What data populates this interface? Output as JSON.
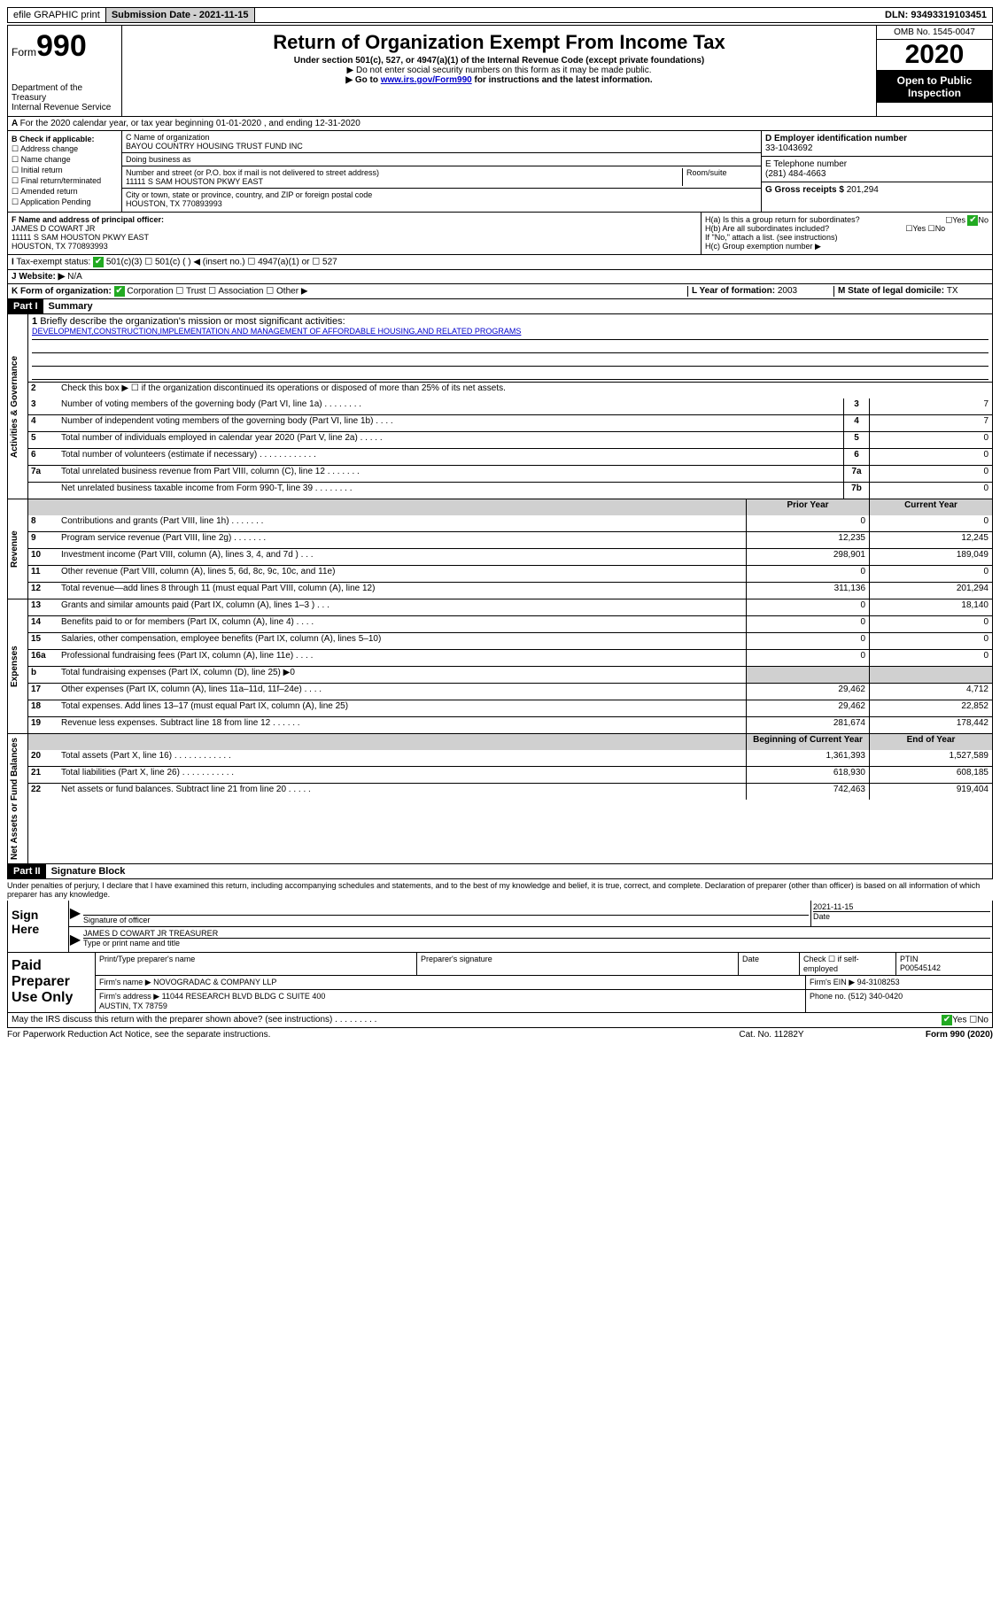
{
  "topbar": {
    "efile": "efile GRAPHIC print",
    "submission_label": "Submission Date - ",
    "submission_date": "2021-11-15",
    "dln_label": "DLN: ",
    "dln": "93493319103451"
  },
  "header": {
    "form_prefix": "Form",
    "form_number": "990",
    "dept": "Department of the Treasury\nInternal Revenue Service",
    "title": "Return of Organization Exempt From Income Tax",
    "subtitle": "Under section 501(c), 527, or 4947(a)(1) of the Internal Revenue Code (except private foundations)",
    "note1": "▶ Do not enter social security numbers on this form as it may be made public.",
    "note2_pre": "▶ Go to ",
    "note2_link": "www.irs.gov/Form990",
    "note2_post": " for instructions and the latest information.",
    "omb": "OMB No. 1545-0047",
    "year": "2020",
    "inspection": "Open to Public Inspection"
  },
  "periodA": "For the 2020 calendar year, or tax year beginning 01-01-2020    , and ending 12-31-2020",
  "boxB": {
    "label": "B Check if applicable:",
    "items": [
      "Address change",
      "Name change",
      "Initial return",
      "Final return/terminated",
      "Amended return",
      "Application Pending"
    ]
  },
  "boxC": {
    "name_label": "C Name of organization",
    "name": "BAYOU COUNTRY HOUSING TRUST FUND INC",
    "dba_label": "Doing business as",
    "street_label": "Number and street (or P.O. box if mail is not delivered to street address)",
    "room_label": "Room/suite",
    "street": "11111 S SAM HOUSTON PKWY EAST",
    "city_label": "City or town, state or province, country, and ZIP or foreign postal code",
    "city": "HOUSTON, TX  770893993"
  },
  "boxD": {
    "label": "D Employer identification number",
    "value": "33-1043692"
  },
  "boxE": {
    "label": "E Telephone number",
    "value": "(281) 484-4663"
  },
  "boxG": {
    "label": "G Gross receipts $ ",
    "value": "201,294"
  },
  "boxF": {
    "label": "F  Name and address of principal officer:",
    "name": "JAMES D COWART JR",
    "addr1": "11111 S SAM HOUSTON PKWY EAST",
    "addr2": "HOUSTON, TX  770893993"
  },
  "boxH": {
    "a": "H(a)  Is this a group return for subordinates?",
    "b": "H(b)  Are all subordinates included?",
    "note": "If \"No,\" attach a list. (see instructions)",
    "c": "H(c)  Group exemption number ▶",
    "yes": "Yes",
    "no": "No"
  },
  "taxExempt": {
    "label": "Tax-exempt status:",
    "opt1": "501(c)(3)",
    "opt2": "501(c) (   ) ◀ (insert no.)",
    "opt3": "4947(a)(1) or",
    "opt4": "527"
  },
  "lineJ": {
    "label": "Website: ▶",
    "value": "N/A"
  },
  "lineK": {
    "label": "K Form of organization:",
    "opts": [
      "Corporation",
      "Trust",
      "Association",
      "Other ▶"
    ],
    "L": "L Year of formation: ",
    "Lval": "2003",
    "M": "M State of legal domicile: ",
    "Mval": "TX"
  },
  "partI": {
    "tag": "Part I",
    "title": "Summary",
    "q1": "Briefly describe the organization's mission or most significant activities:",
    "mission": "DEVELOPMENT,CONSTRUCTION,IMPLEMENTATION AND MANAGEMENT OF AFFORDABLE HOUSING,AND RELATED PROGRAMS",
    "q2": "Check this box ▶ ☐  if the organization discontinued its operations or disposed of more than 25% of its net assets.",
    "sections": {
      "gov": "Activities & Governance",
      "rev": "Revenue",
      "exp": "Expenses",
      "net": "Net Assets or Fund Balances"
    },
    "heads": {
      "prior": "Prior Year",
      "current": "Current Year",
      "boy": "Beginning of Current Year",
      "eoy": "End of Year"
    },
    "rows_gov": [
      {
        "n": "3",
        "d": "Number of voting members of the governing body (Part VI, line 1a)   .    .    .    .    .    .    .    .",
        "c": "3",
        "v": "7"
      },
      {
        "n": "4",
        "d": "Number of independent voting members of the governing body (Part VI, line 1b)   .    .    .    .",
        "c": "4",
        "v": "7"
      },
      {
        "n": "5",
        "d": "Total number of individuals employed in calendar year 2020 (Part V, line 2a)   .    .    .    .    .",
        "c": "5",
        "v": "0"
      },
      {
        "n": "6",
        "d": "Total number of volunteers (estimate if necessary)   .    .    .    .    .    .    .    .    .    .    .    .",
        "c": "6",
        "v": "0"
      },
      {
        "n": "7a",
        "d": "Total unrelated business revenue from Part VIII, column (C), line 12   .    .    .    .    .    .    .",
        "c": "7a",
        "v": "0"
      },
      {
        "n": "",
        "d": "Net unrelated business taxable income from Form 990-T, line 39   .    .    .    .    .    .    .    .",
        "c": "7b",
        "v": "0"
      }
    ],
    "rows_rev": [
      {
        "n": "8",
        "d": "Contributions and grants (Part VIII, line 1h)   .    .    .    .    .    .    .",
        "p": "0",
        "c": "0"
      },
      {
        "n": "9",
        "d": "Program service revenue (Part VIII, line 2g)   .    .    .    .    .    .    .",
        "p": "12,235",
        "c": "12,245"
      },
      {
        "n": "10",
        "d": "Investment income (Part VIII, column (A), lines 3, 4, and 7d )   .    .    .",
        "p": "298,901",
        "c": "189,049"
      },
      {
        "n": "11",
        "d": "Other revenue (Part VIII, column (A), lines 5, 6d, 8c, 9c, 10c, and 11e)",
        "p": "0",
        "c": "0"
      },
      {
        "n": "12",
        "d": "Total revenue—add lines 8 through 11 (must equal Part VIII, column (A), line 12)",
        "p": "311,136",
        "c": "201,294"
      }
    ],
    "rows_exp": [
      {
        "n": "13",
        "d": "Grants and similar amounts paid (Part IX, column (A), lines 1–3 )   .    .    .",
        "p": "0",
        "c": "18,140"
      },
      {
        "n": "14",
        "d": "Benefits paid to or for members (Part IX, column (A), line 4)   .    .    .    .",
        "p": "0",
        "c": "0"
      },
      {
        "n": "15",
        "d": "Salaries, other compensation, employee benefits (Part IX, column (A), lines 5–10)",
        "p": "0",
        "c": "0"
      },
      {
        "n": "16a",
        "d": "Professional fundraising fees (Part IX, column (A), line 11e)   .    .    .    .",
        "p": "0",
        "c": "0"
      },
      {
        "n": "b",
        "d": "Total fundraising expenses (Part IX, column (D), line 25) ▶0",
        "p": "",
        "c": "",
        "grey": true
      },
      {
        "n": "17",
        "d": "Other expenses (Part IX, column (A), lines 11a–11d, 11f–24e)   .    .    .    .",
        "p": "29,462",
        "c": "4,712"
      },
      {
        "n": "18",
        "d": "Total expenses. Add lines 13–17 (must equal Part IX, column (A), line 25)",
        "p": "29,462",
        "c": "22,852"
      },
      {
        "n": "19",
        "d": "Revenue less expenses. Subtract line 18 from line 12   .    .    .    .    .    .",
        "p": "281,674",
        "c": "178,442"
      }
    ],
    "rows_net": [
      {
        "n": "20",
        "d": "Total assets (Part X, line 16)   .    .    .    .    .    .    .    .    .    .    .    .",
        "p": "1,361,393",
        "c": "1,527,589"
      },
      {
        "n": "21",
        "d": "Total liabilities (Part X, line 26)   .    .    .    .    .    .    .    .    .    .    .",
        "p": "618,930",
        "c": "608,185"
      },
      {
        "n": "22",
        "d": "Net assets or fund balances. Subtract line 21 from line 20   .    .    .    .    .",
        "p": "742,463",
        "c": "919,404"
      }
    ]
  },
  "partII": {
    "tag": "Part II",
    "title": "Signature Block",
    "perjury": "Under penalties of perjury, I declare that I have examined this return, including accompanying schedules and statements, and to the best of my knowledge and belief, it is true, correct, and complete. Declaration of preparer (other than officer) is based on all information of which preparer has any knowledge."
  },
  "sign": {
    "label": "Sign Here",
    "sig_label": "Signature of officer",
    "date_label": "Date",
    "date": "2021-11-15",
    "name": "JAMES D COWART JR  TREASURER",
    "name_label": "Type or print name and title"
  },
  "prep": {
    "label": "Paid Preparer Use Only",
    "r1": {
      "a": "Print/Type preparer's name",
      "b": "Preparer's signature",
      "c": "Date",
      "d": "Check ☐ if self-employed",
      "e": "PTIN",
      "eval": "P00545142"
    },
    "r2": {
      "a": "Firm's name    ▶ ",
      "aval": "NOVOGRADAC & COMPANY LLP",
      "b": "Firm's EIN ▶ ",
      "bval": "94-3108253"
    },
    "r3": {
      "a": "Firm's address ▶ ",
      "aval": "11044 RESEARCH BLVD BLDG C SUITE 400\nAUSTIN, TX  78759",
      "b": "Phone no. ",
      "bval": "(512) 340-0420"
    }
  },
  "discuss": {
    "q": "May the IRS discuss this return with the preparer shown above? (see instructions)    .    .    .    .    .    .    .    .    .",
    "yes": "Yes",
    "no": "No"
  },
  "footer": {
    "left": "For Paperwork Reduction Act Notice, see the separate instructions.",
    "cat": "Cat. No. 11282Y",
    "right": "Form 990 (2020)"
  }
}
